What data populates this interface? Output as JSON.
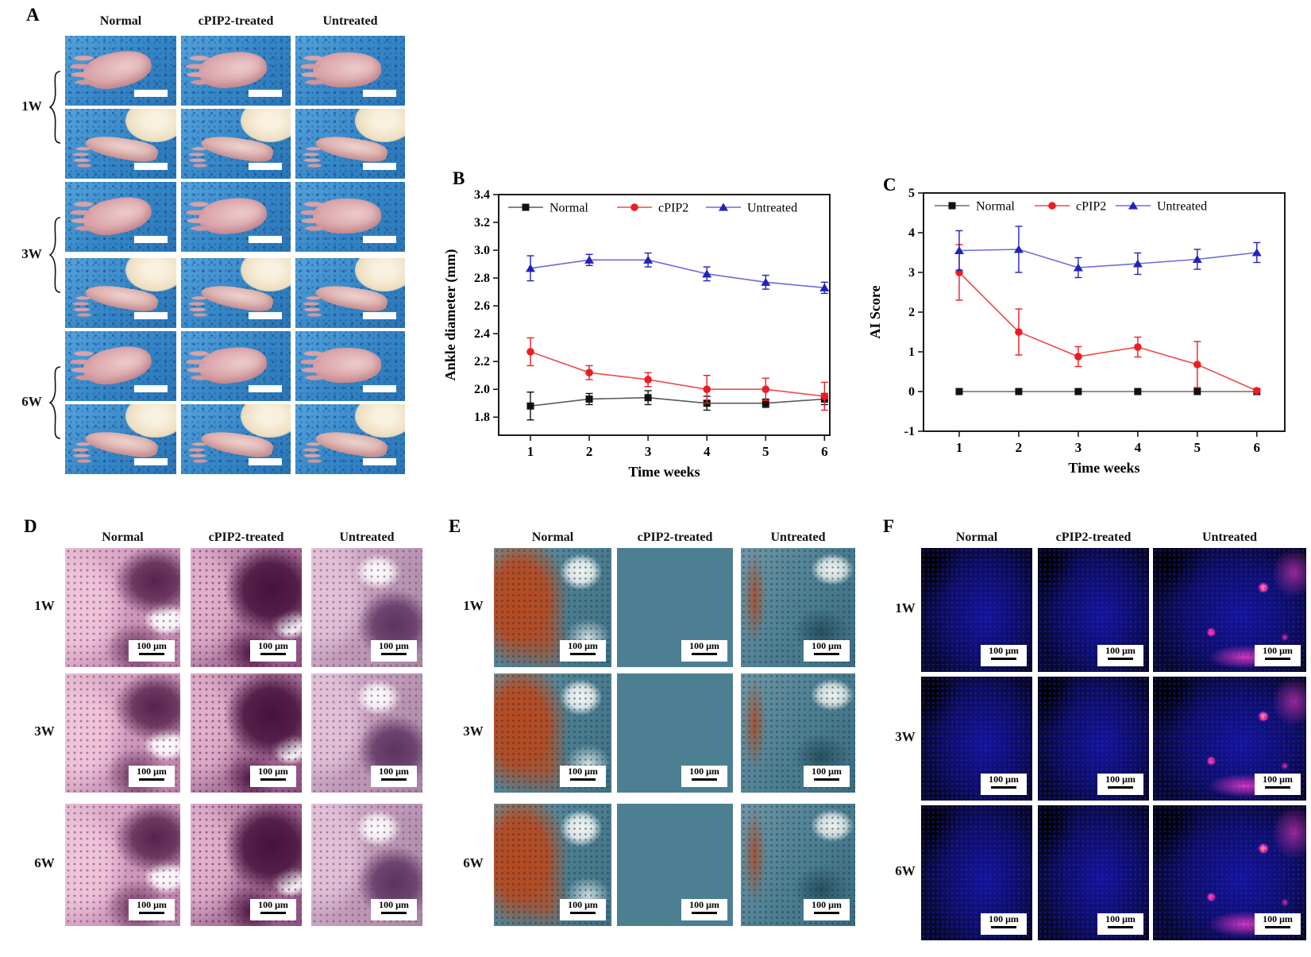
{
  "figure": {
    "background": "#ffffff"
  },
  "panels": {
    "A": {
      "label": "A",
      "columns": [
        "Normal",
        "cPIP2-treated",
        "Untreated"
      ],
      "row_groups": [
        "1W",
        "3W",
        "6W"
      ]
    },
    "B": {
      "label": "B"
    },
    "C": {
      "label": "C"
    },
    "D": {
      "label": "D",
      "columns": [
        "Normal",
        "cPIP2-treated",
        "Untreated"
      ],
      "rows": [
        "1W",
        "3W",
        "6W"
      ],
      "scale_bar_label": "100 μm"
    },
    "E": {
      "label": "E",
      "columns": [
        "Normal",
        "cPIP2-treated",
        "Untreated"
      ],
      "rows": [
        "1W",
        "3W",
        "6W"
      ],
      "scale_bar_label": "100 μm"
    },
    "F": {
      "label": "F",
      "columns": [
        "Normal",
        "cPIP2-treated",
        "Untreated"
      ],
      "rows": [
        "1W",
        "3W",
        "6W"
      ],
      "scale_bar_label": "100 μm"
    }
  },
  "chart_data": [
    {
      "panel": "B",
      "type": "line",
      "title": "",
      "xlabel": "Time weeks",
      "ylabel": "Ankle diameter (mm)",
      "x": [
        1,
        2,
        3,
        4,
        5,
        6
      ],
      "xlim": [
        0.46,
        6.09
      ],
      "ylim": [
        1.67,
        3.4
      ],
      "yticks": [
        1.8,
        2.0,
        2.2,
        2.4,
        2.6,
        2.8,
        3.0,
        3.2,
        3.4
      ],
      "ytick_decimals": 1,
      "grid": false,
      "legend_position": "top-inside",
      "series": [
        {
          "name": "Normal",
          "marker": "square",
          "marker_color": "#111111",
          "line_color": "#5a5a5a",
          "values": [
            1.88,
            1.93,
            1.94,
            1.9,
            1.9,
            1.93
          ],
          "errors": [
            0.1,
            0.04,
            0.05,
            0.05,
            0.03,
            0.04
          ]
        },
        {
          "name": "cPIP2",
          "marker": "circle",
          "marker_color": "#ed1c24",
          "line_color": "#f04a4a",
          "values": [
            2.27,
            2.12,
            2.07,
            2.0,
            2.0,
            1.95
          ],
          "errors": [
            0.1,
            0.05,
            0.05,
            0.1,
            0.08,
            0.1
          ]
        },
        {
          "name": "Untreated",
          "marker": "triangle",
          "marker_color": "#2222bb",
          "line_color": "#6b6bdc",
          "values": [
            2.87,
            2.93,
            2.93,
            2.83,
            2.77,
            2.73
          ],
          "errors": [
            0.09,
            0.04,
            0.05,
            0.05,
            0.05,
            0.04
          ]
        }
      ]
    },
    {
      "panel": "C",
      "type": "line",
      "title": "",
      "xlabel": "Time weeks",
      "ylabel": "AI Score",
      "x": [
        1,
        2,
        3,
        4,
        5,
        6
      ],
      "xlim": [
        0.4,
        6.47
      ],
      "ylim": [
        -1,
        5
      ],
      "yticks": [
        -1,
        0,
        1,
        2,
        3,
        4,
        5
      ],
      "ytick_decimals": 0,
      "grid": false,
      "legend_position": "top-inside",
      "series": [
        {
          "name": "Normal",
          "marker": "square",
          "marker_color": "#111111",
          "line_color": "#6b6b6b",
          "values": [
            0,
            0,
            0,
            0,
            0,
            0
          ],
          "errors": [
            0,
            0,
            0,
            0,
            0,
            0
          ]
        },
        {
          "name": "cPIP2",
          "marker": "circle",
          "marker_color": "#ed1c24",
          "line_color": "#f04a4a",
          "values": [
            3.0,
            1.5,
            0.88,
            1.12,
            0.68,
            0.02
          ],
          "errors": [
            0.7,
            0.58,
            0.25,
            0.25,
            0.58,
            0
          ]
        },
        {
          "name": "Untreated",
          "marker": "triangle",
          "marker_color": "#2222bb",
          "line_color": "#6b6bdc",
          "values": [
            3.55,
            3.58,
            3.12,
            3.22,
            3.33,
            3.5
          ],
          "errors": [
            0.5,
            0.58,
            0.25,
            0.27,
            0.25,
            0.25
          ]
        }
      ]
    }
  ]
}
